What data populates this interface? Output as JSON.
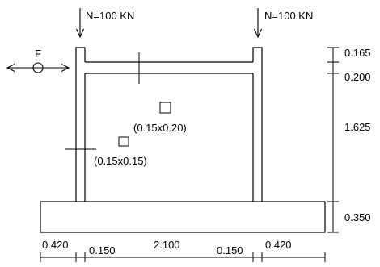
{
  "loads": {
    "left_label": "N=100 KN",
    "right_label": "N=100 KN",
    "horizontal_label": "F"
  },
  "sections": {
    "beam_label": "(0.15x0.20)",
    "column_label": "(0.15x0.15)"
  },
  "vertical_dimensions": [
    "0.165",
    "0.200",
    "1.625",
    "0.350"
  ],
  "horizontal_dimensions": [
    "0.420",
    "0.150",
    "2.100",
    "0.150",
    "0.420"
  ]
}
